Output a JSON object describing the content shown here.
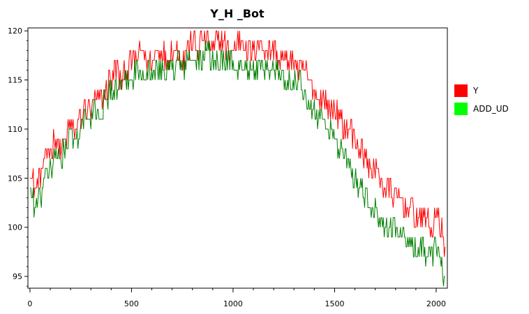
{
  "chart_data": {
    "type": "line",
    "title": "Y_H _Bot",
    "xlabel": "",
    "ylabel": "",
    "xlim": [
      -10,
      2055
    ],
    "ylim": [
      93.8,
      120.3
    ],
    "xticks": [
      0,
      500,
      1000,
      1500,
      2000
    ],
    "yticks": [
      95,
      100,
      105,
      110,
      115,
      120
    ],
    "grid": false,
    "legend_position": "right",
    "series": [
      {
        "name": "Y",
        "color": "#ff0000",
        "x": [
          0,
          25,
          50,
          75,
          100,
          125,
          150,
          175,
          200,
          225,
          250,
          275,
          300,
          325,
          350,
          375,
          400,
          425,
          450,
          475,
          500,
          525,
          550,
          575,
          600,
          625,
          650,
          675,
          700,
          725,
          750,
          775,
          800,
          825,
          850,
          875,
          900,
          925,
          950,
          975,
          1000,
          1025,
          1050,
          1075,
          1100,
          1125,
          1150,
          1175,
          1200,
          1225,
          1250,
          1275,
          1300,
          1325,
          1350,
          1375,
          1400,
          1425,
          1450,
          1475,
          1500,
          1525,
          1550,
          1575,
          1600,
          1625,
          1650,
          1675,
          1700,
          1725,
          1750,
          1775,
          1800,
          1825,
          1850,
          1875,
          1900,
          1925,
          1950,
          1975,
          2000,
          2025,
          2045
        ],
        "y": [
          106,
          104,
          105,
          107,
          108,
          109,
          108,
          109,
          110,
          110,
          111,
          112,
          112,
          113,
          113,
          114,
          115,
          116,
          115,
          116,
          117,
          117,
          118,
          117,
          117,
          118,
          118,
          117,
          118,
          118,
          117,
          118,
          119,
          118,
          119,
          119,
          118,
          119,
          119,
          118,
          118,
          119,
          119,
          118,
          118,
          119,
          118,
          118,
          118,
          117,
          117,
          117,
          117,
          116,
          116,
          115,
          114,
          113,
          113,
          112,
          112,
          111,
          110,
          110,
          109,
          108,
          107,
          106,
          106,
          105,
          104,
          104,
          103,
          103,
          102,
          102,
          101,
          101,
          101,
          100,
          101,
          100,
          97
        ]
      },
      {
        "name": "ADD_UD",
        "color": "#008000",
        "x": [
          0,
          25,
          50,
          75,
          100,
          125,
          150,
          175,
          200,
          225,
          250,
          275,
          300,
          325,
          350,
          375,
          400,
          425,
          450,
          475,
          500,
          525,
          550,
          575,
          600,
          625,
          650,
          675,
          700,
          725,
          750,
          775,
          800,
          825,
          850,
          875,
          900,
          925,
          950,
          975,
          1000,
          1025,
          1050,
          1075,
          1100,
          1125,
          1150,
          1175,
          1200,
          1225,
          1250,
          1275,
          1300,
          1325,
          1350,
          1375,
          1400,
          1425,
          1450,
          1475,
          1500,
          1525,
          1550,
          1575,
          1600,
          1625,
          1650,
          1675,
          1700,
          1725,
          1750,
          1775,
          1800,
          1825,
          1850,
          1875,
          1900,
          1925,
          1950,
          1975,
          2000,
          2025,
          2045
        ],
        "y": [
          104,
          102,
          103,
          105,
          106,
          107,
          107,
          108,
          109,
          109,
          110,
          111,
          111,
          112,
          112,
          113,
          114,
          114,
          114,
          115,
          115,
          116,
          116,
          116,
          116,
          116,
          116,
          116,
          116,
          117,
          116,
          117,
          117,
          117,
          117,
          118,
          117,
          117,
          117,
          117,
          117,
          116,
          117,
          116,
          116,
          116,
          116,
          116,
          116,
          116,
          115,
          115,
          115,
          115,
          114,
          113,
          112,
          111,
          111,
          110,
          109,
          108,
          107,
          106,
          105,
          104,
          103,
          102,
          102,
          101,
          100,
          100,
          100,
          99,
          99,
          98,
          98,
          98,
          97,
          97,
          98,
          96,
          94
        ]
      }
    ]
  }
}
